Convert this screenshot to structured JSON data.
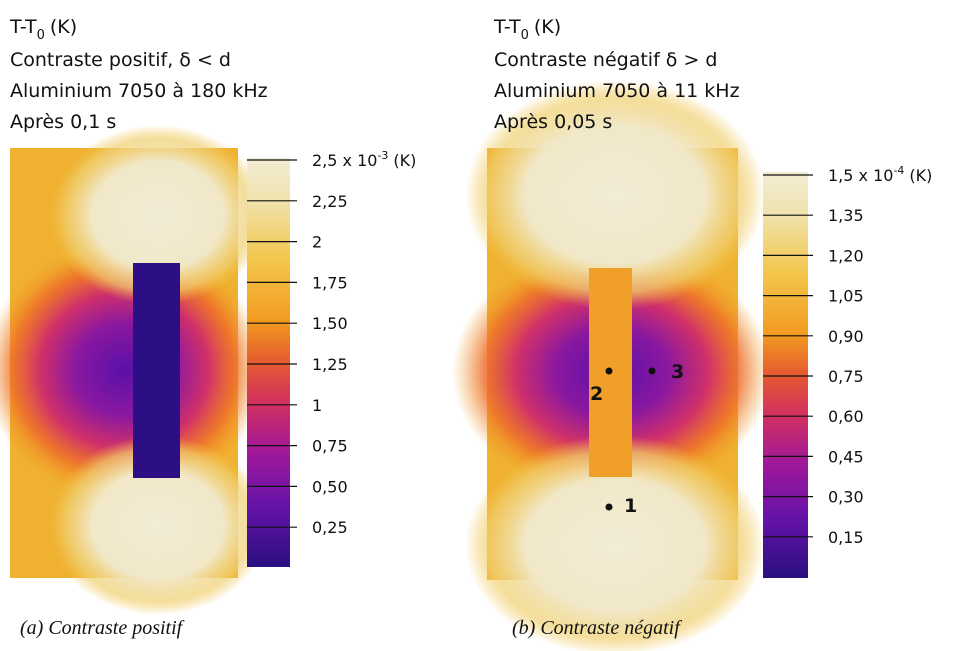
{
  "panels": [
    {
      "header": {
        "quantity": "T-T",
        "subscript": "0",
        "unit": "(K)"
      },
      "lines": [
        "Contraste positif, δ < d",
        "Aluminium 7050 à 180 kHz",
        "Après 0,1 s"
      ],
      "colorbar": {
        "top_label": {
          "mantissa": "2,5 x 10",
          "exponent": "-3",
          "unit": "(K)"
        },
        "labels": [
          "2,25",
          "2",
          "1,75",
          "1,50",
          "1,25",
          "1",
          "0,75",
          "0,50",
          "0,25"
        ]
      },
      "caption": "(a) Contraste positif"
    },
    {
      "header": {
        "quantity": "T-T",
        "subscript": "0",
        "unit": "(K)"
      },
      "lines": [
        "Contraste négatif δ > d",
        "Aluminium 7050 à 11 kHz",
        "Après 0,05 s"
      ],
      "colorbar": {
        "top_label": {
          "mantissa": "1,5 x 10",
          "exponent": "-4",
          "unit": "(K)"
        },
        "labels": [
          "1,35",
          "1,20",
          "1,05",
          "0,90",
          "0,75",
          "0,60",
          "0,45",
          "0,30",
          "0,15"
        ]
      },
      "points": [
        "1",
        "2",
        "3"
      ],
      "caption": "(b) Contraste négatif"
    }
  ]
}
